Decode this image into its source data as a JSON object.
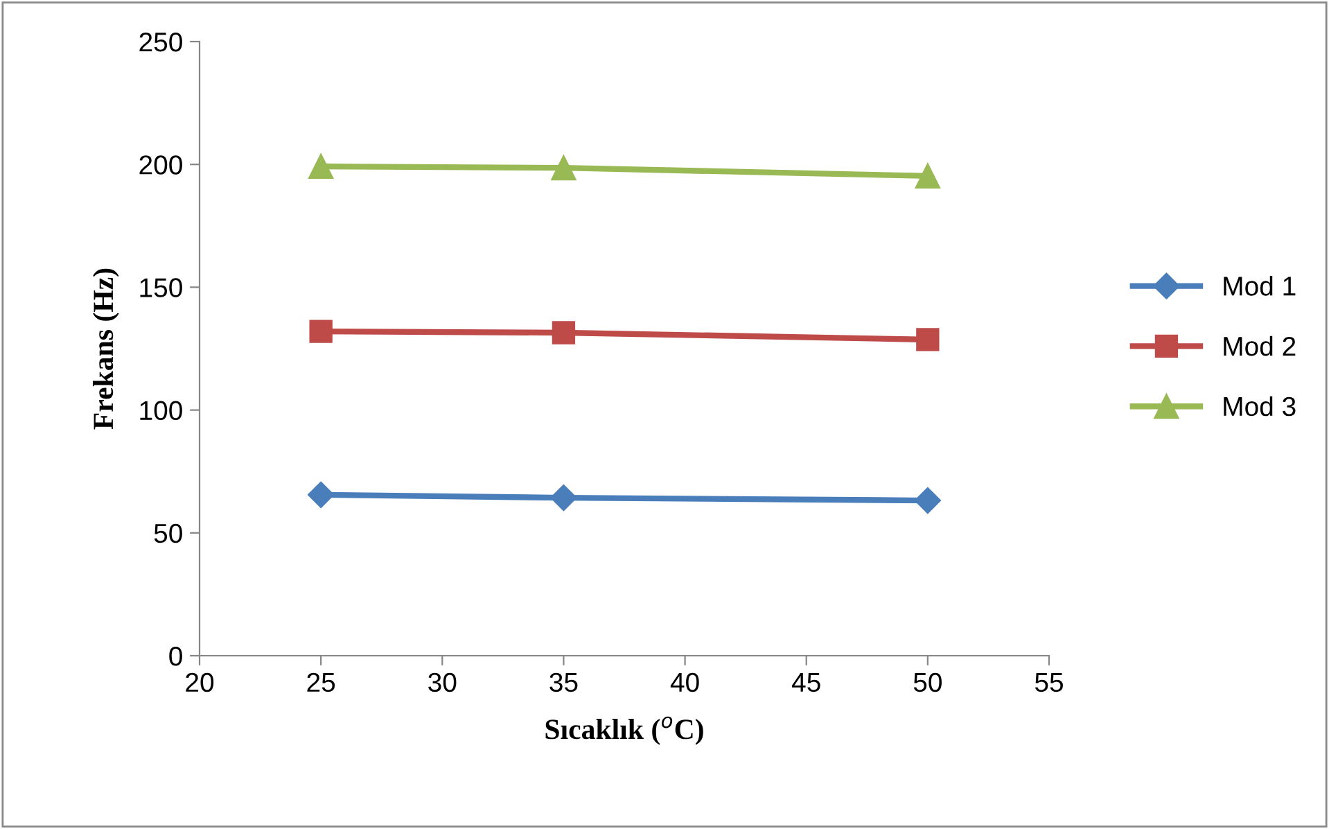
{
  "chart_data": {
    "type": "line",
    "xlabel": "Sıcaklık ($^{o}$C)",
    "ylabel": "Frekans (Hz)",
    "x": [
      25,
      35,
      50
    ],
    "series": [
      {
        "name": "Mod 1",
        "color": "#4a7ebb",
        "marker": "diamond",
        "values": [
          65.5,
          64.3,
          63.2
        ]
      },
      {
        "name": "Mod 2",
        "color": "#be4b48",
        "marker": "square",
        "values": [
          132,
          131.5,
          128.7
        ]
      },
      {
        "name": "Mod 3",
        "color": "#98b954",
        "marker": "triangle",
        "values": [
          199.2,
          198.6,
          195.3
        ]
      }
    ],
    "xlim": [
      20,
      55
    ],
    "xticks": [
      20,
      25,
      30,
      35,
      40,
      45,
      50,
      55
    ],
    "ylim": [
      0,
      250
    ],
    "yticks": [
      0,
      50,
      100,
      150,
      200,
      250
    ],
    "grid": false,
    "legend": "right",
    "line_style": "solid"
  }
}
